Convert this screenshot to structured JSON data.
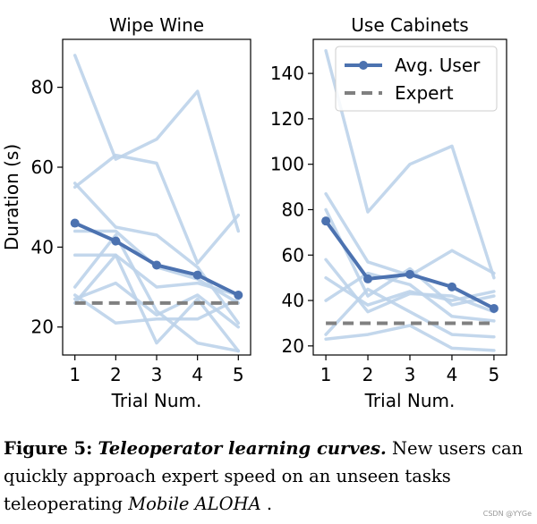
{
  "chart_data": [
    {
      "type": "line",
      "title": "Wipe Wine",
      "xlabel": "Trial Num.",
      "ylabel": "Duration (s)",
      "x": [
        1,
        2,
        3,
        4,
        5
      ],
      "xlim": [
        0.7,
        5.3
      ],
      "ylim": [
        13,
        92
      ],
      "yticks": [
        20,
        40,
        60,
        80
      ],
      "users": [
        [
          88,
          62,
          67,
          79,
          44
        ],
        [
          55,
          63,
          61,
          36,
          48
        ],
        [
          56,
          45,
          43,
          35,
          21
        ],
        [
          44,
          44,
          35,
          32,
          26
        ],
        [
          38,
          38,
          16,
          27,
          14
        ],
        [
          30,
          43,
          24,
          16,
          14
        ],
        [
          28,
          21,
          22,
          22,
          27
        ],
        [
          27,
          31,
          23,
          28,
          20
        ],
        [
          26,
          38,
          30,
          31,
          28
        ]
      ],
      "avg_user": [
        46,
        41.5,
        35.5,
        33,
        28
      ],
      "expert": 26
    },
    {
      "type": "line",
      "title": "Use Cabinets",
      "xlabel": "Trial Num.",
      "ylabel": "",
      "x": [
        1,
        2,
        3,
        4,
        5
      ],
      "xlim": [
        0.7,
        5.3
      ],
      "ylim": [
        16,
        155
      ],
      "yticks": [
        20,
        40,
        60,
        80,
        100,
        120,
        140
      ],
      "users": [
        [
          150,
          79,
          100,
          108,
          50
        ],
        [
          87,
          57,
          51,
          62,
          52
        ],
        [
          80,
          42,
          54,
          38,
          42
        ],
        [
          58,
          35,
          43,
          42,
          35
        ],
        [
          50,
          38,
          44,
          40,
          44
        ],
        [
          40,
          52,
          47,
          33,
          31
        ],
        [
          23,
          25,
          29,
          19,
          18
        ],
        [
          25,
          45,
          35,
          25,
          24
        ]
      ],
      "avg_user": [
        75,
        49.5,
        51.5,
        46,
        36.5
      ],
      "expert": 30,
      "legend": {
        "position": "top-right",
        "entries": [
          "Avg. User",
          "Expert"
        ]
      }
    }
  ],
  "colors": {
    "user_line": "#bcd3ea",
    "avg_line": "#4c72b0",
    "expert_line": "#808080"
  },
  "caption": {
    "label": "Figure 5:",
    "title": "Teleoperator learning curves.",
    "text": "New users can quickly approach expert speed on an unseen tasks teleoperating",
    "emph": "Mobile ALOHA",
    "end": " ."
  },
  "watermark": "CSDN @YYGe"
}
